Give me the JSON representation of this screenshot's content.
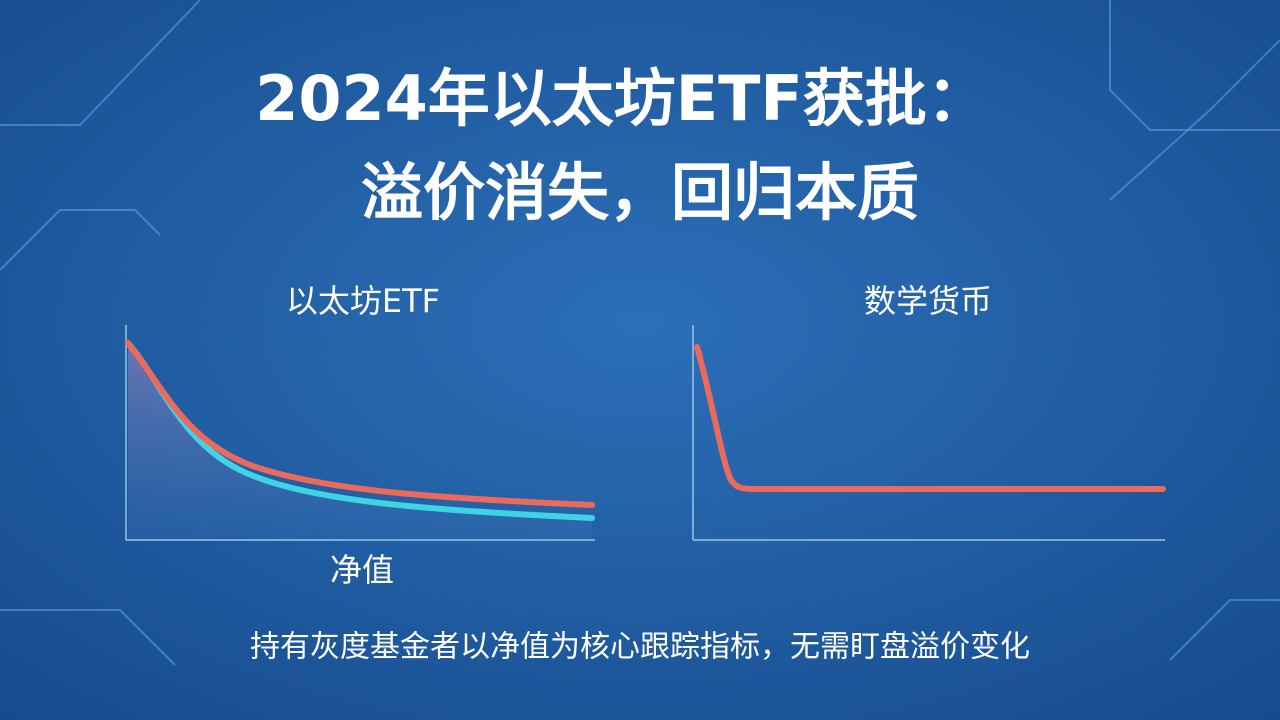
{
  "header": {
    "title_lines": [
      "2024年以太坊ETF获批：",
      "溢价消失，回归本质"
    ]
  },
  "panels": [
    {
      "label": "以太坊ETF",
      "axis_label": "净值"
    },
    {
      "label": "数学货币"
    }
  ],
  "caption": "持有灰度基金者以净值为核心跟踪指标，无需盯盘溢价变化"
}
